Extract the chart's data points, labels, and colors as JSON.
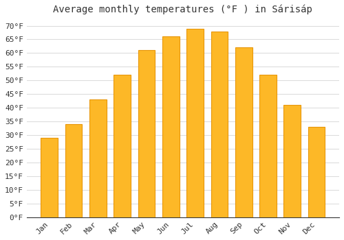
{
  "title": "Average monthly temperatures (°F ) in Sárisáp",
  "months": [
    "Jan",
    "Feb",
    "Mar",
    "Apr",
    "May",
    "Jun",
    "Jul",
    "Aug",
    "Sep",
    "Oct",
    "Nov",
    "Dec"
  ],
  "values": [
    29,
    34,
    43,
    52,
    61,
    66,
    69,
    68,
    62,
    52,
    41,
    33
  ],
  "bar_color": "#FDB827",
  "bar_edge_color": "#E8960A",
  "background_color": "#FFFFFF",
  "grid_color": "#DDDDDD",
  "text_color": "#333333",
  "ylim": [
    0,
    72
  ],
  "yticks": [
    0,
    5,
    10,
    15,
    20,
    25,
    30,
    35,
    40,
    45,
    50,
    55,
    60,
    65,
    70
  ],
  "ytick_labels": [
    "0°F",
    "5°F",
    "10°F",
    "15°F",
    "20°F",
    "25°F",
    "30°F",
    "35°F",
    "40°F",
    "45°F",
    "50°F",
    "55°F",
    "60°F",
    "65°F",
    "70°F"
  ],
  "title_fontsize": 10,
  "tick_fontsize": 8,
  "bar_width": 0.7,
  "label_rotation": 45
}
